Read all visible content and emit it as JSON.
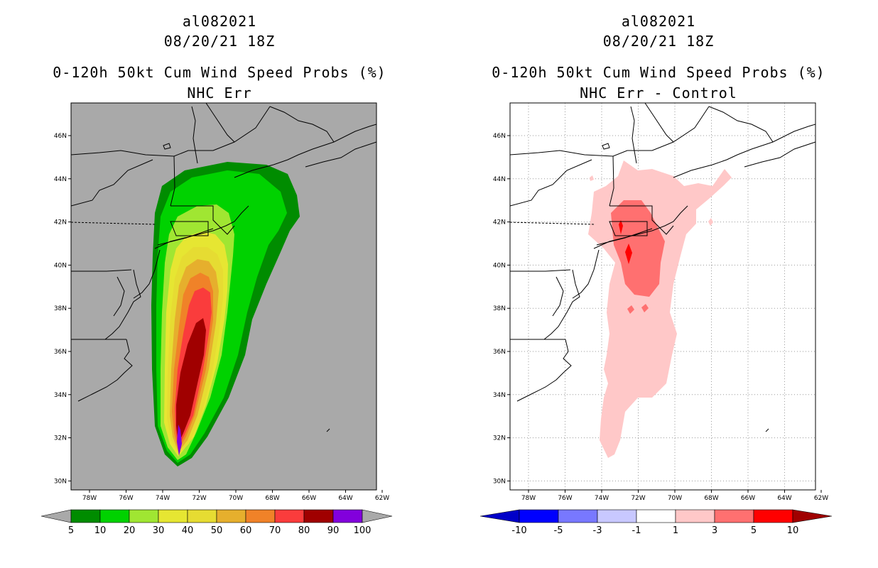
{
  "colors": {
    "background_gray": "#a9a9a9",
    "prob_5": "#008c00",
    "prob_10": "#00d200",
    "prob_20": "#a0e632",
    "prob_30": "#e6e632",
    "prob_40": "#e6dc32",
    "prob_50": "#e6af2d",
    "prob_60": "#f08228",
    "prob_70": "#fa3c3c",
    "prob_80": "#a00000",
    "prob_90": "#8200dc",
    "diff_neg10": "#0000c8",
    "diff_neg5": "#0000ff",
    "diff_neg3": "#7878ff",
    "diff_neg1": "#c8c8ff",
    "diff_zero": "#ffffff",
    "diff_1": "#ffc8c8",
    "diff_3": "#ff7070",
    "diff_5": "#ff0000",
    "diff_10": "#a00000"
  },
  "left_panel": {
    "storm_id": "al082021",
    "datetime": "08/20/21 18Z",
    "product": "0-120h 50kt Cum Wind Speed Probs (%)",
    "subtitle": "NHC Err",
    "colorbar_labels": [
      "5",
      "10",
      "20",
      "30",
      "40",
      "50",
      "60",
      "70",
      "80",
      "90",
      "100"
    ]
  },
  "right_panel": {
    "storm_id": "al082021",
    "datetime": "08/20/21 18Z",
    "product": "0-120h 50kt Cum Wind Speed Probs (%)",
    "subtitle": "NHC Err - Control",
    "colorbar_labels": [
      "-10",
      "-5",
      "-3",
      "-1",
      "1",
      "3",
      "5",
      "10"
    ]
  },
  "axes": {
    "lon_labels": [
      "78W",
      "76W",
      "74W",
      "72W",
      "70W",
      "68W",
      "66W",
      "64W",
      "62W"
    ],
    "lat_labels": [
      "46N",
      "44N",
      "42N",
      "40N",
      "38N",
      "36N",
      "34N",
      "32N",
      "30N"
    ]
  }
}
